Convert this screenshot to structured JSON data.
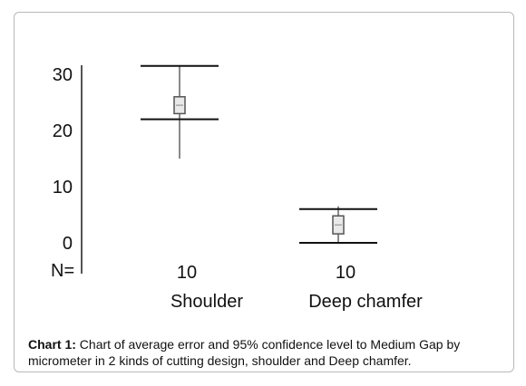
{
  "chart_data": {
    "type": "errorbar",
    "title": "",
    "xlabel": "",
    "ylabel": "",
    "ylim": [
      0,
      30
    ],
    "yticks": [
      0,
      10,
      20,
      30
    ],
    "n_label": "N=",
    "categories": [
      "Shoulder",
      "Deep chamfer"
    ],
    "n": [
      10,
      10
    ],
    "series": [
      {
        "mean": [
          24.5,
          3.2
        ],
        "ci_low": [
          22,
          0
        ],
        "ci_high": [
          31.5,
          6
        ],
        "box_low": [
          23,
          1.6
        ],
        "box_high": [
          26,
          4.8
        ],
        "whisker_low": [
          15,
          0
        ],
        "whisker_high": [
          31.5,
          6.5
        ]
      }
    ]
  },
  "caption": {
    "label": "Chart 1:",
    "text": " Chart of average error and 95% confidence level to Medium Gap by micrometer in 2 kinds of cutting design, shoulder and Deep chamfer."
  }
}
